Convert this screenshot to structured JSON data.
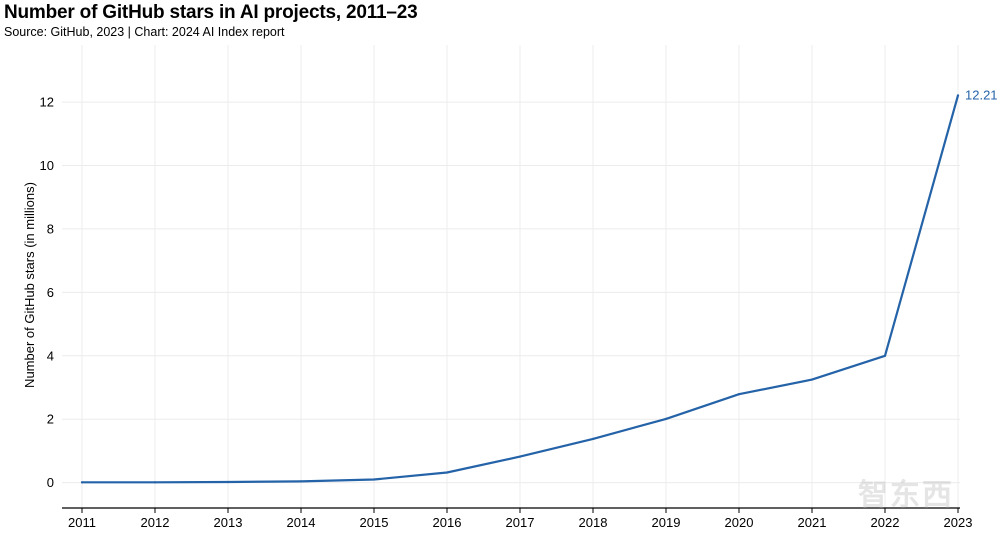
{
  "chart_data": {
    "type": "line",
    "title": "Number of GitHub stars in AI projects, 2011–23",
    "subtitle": "Source: GitHub, 2023 | Chart: 2024 AI Index report",
    "xlabel": "",
    "ylabel": "Number of GitHub stars (in millions)",
    "categories": [
      "2011",
      "2012",
      "2013",
      "2014",
      "2015",
      "2016",
      "2017",
      "2018",
      "2019",
      "2020",
      "2021",
      "2022",
      "2023"
    ],
    "series": [
      {
        "name": "GitHub stars",
        "values": [
          0.01,
          0.01,
          0.02,
          0.04,
          0.1,
          0.32,
          0.82,
          1.38,
          2.01,
          2.79,
          3.25,
          4.0,
          12.21
        ]
      }
    ],
    "yticks": [
      0,
      2,
      4,
      6,
      8,
      10,
      12
    ],
    "ylim": [
      -0.8,
      13.8
    ],
    "grid": true,
    "end_label": "12.21",
    "line_color": "#2563a8"
  },
  "watermark": "智东西"
}
